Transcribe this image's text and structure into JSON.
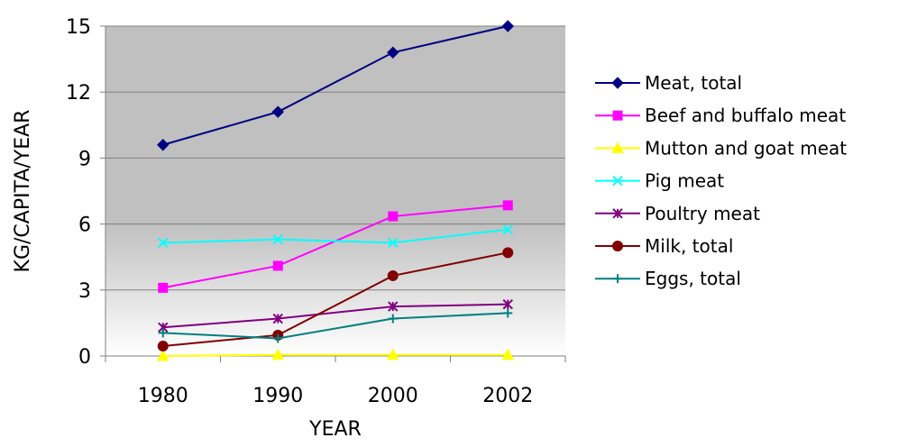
{
  "chart_data": {
    "type": "line",
    "title": "",
    "xlabel": "YEAR",
    "ylabel": "KG/CAPITA/YEAR",
    "categories": [
      "1980",
      "1990",
      "2000",
      "2002"
    ],
    "ylim": [
      0,
      15
    ],
    "yticks": [
      0,
      3,
      6,
      9,
      12,
      15
    ],
    "grid": "horizontal",
    "background": "gradient-gray-to-white",
    "legend_position": "right",
    "series": [
      {
        "name": "Meat, total",
        "color": "#000080",
        "marker": "diamond",
        "values": [
          9.6,
          11.1,
          13.8,
          15.0
        ]
      },
      {
        "name": "Beef and buffalo meat",
        "color": "#FF00FF",
        "marker": "square",
        "values": [
          3.1,
          4.1,
          6.35,
          6.85
        ]
      },
      {
        "name": "Mutton and goat meat",
        "color": "#FFFF00",
        "marker": "triangle",
        "values": [
          0.0,
          0.05,
          0.05,
          0.05
        ]
      },
      {
        "name": "Pig meat",
        "color": "#00FFFF",
        "marker": "x",
        "values": [
          5.15,
          5.3,
          5.15,
          5.75
        ]
      },
      {
        "name": "Poultry meat",
        "color": "#800080",
        "marker": "asterisk",
        "values": [
          1.3,
          1.7,
          2.25,
          2.35
        ]
      },
      {
        "name": "Milk, total",
        "color": "#800000",
        "marker": "circle",
        "values": [
          0.45,
          0.95,
          3.65,
          4.7
        ]
      },
      {
        "name": "Eggs, total",
        "color": "#008080",
        "marker": "plus",
        "values": [
          1.05,
          0.8,
          1.7,
          1.95
        ]
      }
    ]
  }
}
